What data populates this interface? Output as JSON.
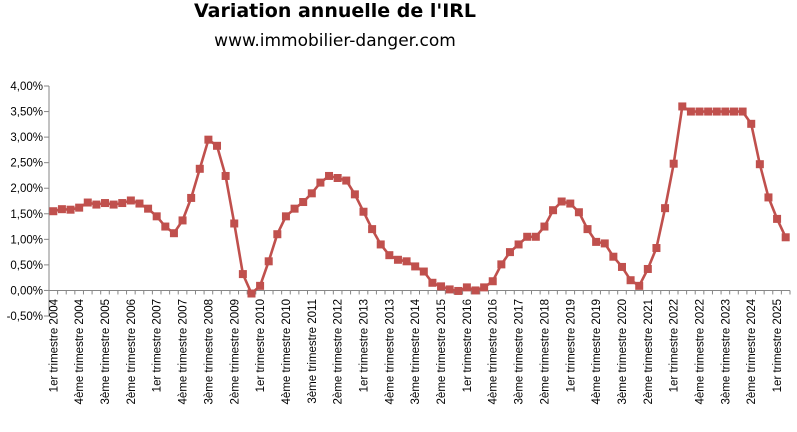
{
  "header": {
    "title": "Variation annuelle de l'IRL",
    "subtitle": "www.immobilier-danger.com"
  },
  "colors": {
    "series": "#c0504d",
    "axis": "#868686"
  },
  "chart_data": {
    "type": "line",
    "title": "Variation annuelle de l'IRL",
    "subtitle": "www.immobilier-danger.com",
    "xlabel": "",
    "ylabel": "",
    "ylim": [
      -0.5,
      4.0
    ],
    "ytick_step": 0.5,
    "grid": false,
    "legend": "none",
    "marker": "square",
    "y_unit": "%",
    "ytick_labels": [
      "-0,50%",
      "0,00%",
      "0,50%",
      "1,00%",
      "1,50%",
      "2,00%",
      "2,50%",
      "3,00%",
      "3,50%",
      "4,00%"
    ],
    "xtick_labels": [
      "1er trimestre 2004",
      "4ème trimestre 2004",
      "3ème trimestre 2005",
      "2ème trimestre 2006",
      "1er trimestre 2007",
      "4ème trimestre 2007",
      "3ème trimestre 2008",
      "2ème trimestre 2009",
      "1er trimestre 2010",
      "4ème trimestre 2010",
      "3ème trimestre 2011",
      "2ème trimestre 2012",
      "1er trimestre 2013",
      "4ème trimestre 2013",
      "3ème trimestre 2014",
      "2ème trimestre 2015",
      "1er trimestre 2016",
      "4ème trimestre 2016",
      "3ème trimestre 2017",
      "2ème trimestre 2018",
      "1er trimestre 2019",
      "4ème trimestre 2019",
      "3ème trimestre 2020",
      "2ème trimestre 2021",
      "1er trimestre 2022",
      "4ème trimestre 2022",
      "3ème trimestre 2023",
      "2ème trimestre 2024",
      "1er trimestre 2025"
    ],
    "series": [
      {
        "name": "Variation annuelle de l'IRL",
        "values": [
          1.55,
          1.59,
          1.58,
          1.62,
          1.72,
          1.68,
          1.71,
          1.68,
          1.71,
          1.76,
          1.7,
          1.6,
          1.45,
          1.25,
          1.12,
          1.37,
          1.81,
          2.38,
          2.95,
          2.83,
          2.24,
          1.31,
          0.32,
          -0.06,
          0.09,
          0.57,
          1.1,
          1.45,
          1.6,
          1.73,
          1.9,
          2.11,
          2.24,
          2.2,
          2.15,
          1.88,
          1.54,
          1.2,
          0.9,
          0.69,
          0.6,
          0.57,
          0.47,
          0.37,
          0.15,
          0.08,
          0.02,
          -0.01,
          0.06,
          0.0,
          0.06,
          0.18,
          0.51,
          0.75,
          0.9,
          1.05,
          1.05,
          1.25,
          1.57,
          1.74,
          1.7,
          1.53,
          1.2,
          0.95,
          0.92,
          0.66,
          0.46,
          0.2,
          0.09,
          0.42,
          0.83,
          1.61,
          2.48,
          3.6,
          3.5,
          3.5,
          3.5,
          3.5,
          3.5,
          3.5,
          3.5,
          3.26,
          2.47,
          1.82,
          1.4,
          1.04
        ]
      }
    ]
  }
}
